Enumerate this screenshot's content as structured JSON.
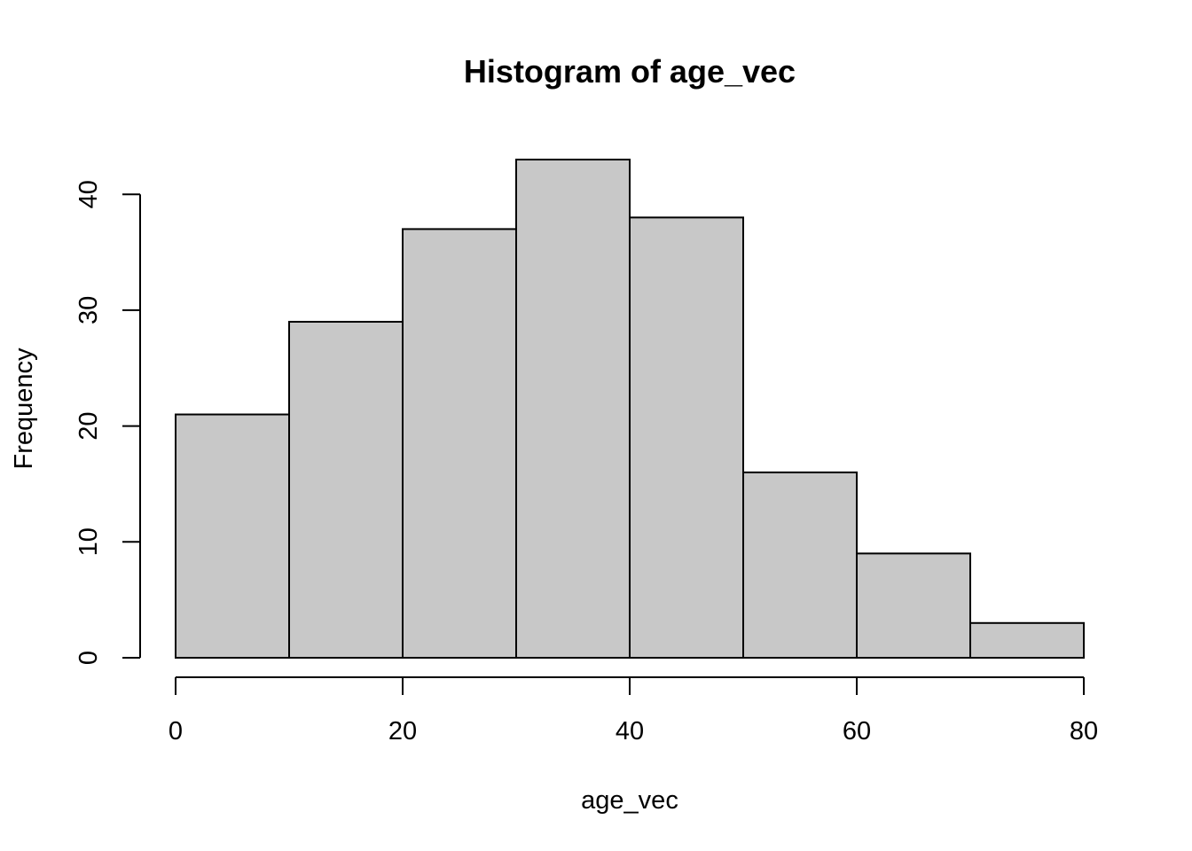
{
  "chart_data": {
    "type": "bar",
    "title": "Histogram of age_vec",
    "xlabel": "age_vec",
    "ylabel": "Frequency",
    "bins": [
      {
        "start": 0,
        "end": 10,
        "count": 21
      },
      {
        "start": 10,
        "end": 20,
        "count": 29
      },
      {
        "start": 20,
        "end": 30,
        "count": 37
      },
      {
        "start": 30,
        "end": 40,
        "count": 43
      },
      {
        "start": 40,
        "end": 50,
        "count": 38
      },
      {
        "start": 50,
        "end": 60,
        "count": 16
      },
      {
        "start": 60,
        "end": 70,
        "count": 9
      },
      {
        "start": 70,
        "end": 80,
        "count": 3
      }
    ],
    "xticks": [
      0,
      20,
      40,
      60,
      80
    ],
    "yticks": [
      0,
      10,
      20,
      30,
      40
    ],
    "xlim": [
      0,
      80
    ],
    "ylim": [
      0,
      43
    ],
    "bar_color": "#c8c8c8",
    "grid": false,
    "legend": "none"
  }
}
